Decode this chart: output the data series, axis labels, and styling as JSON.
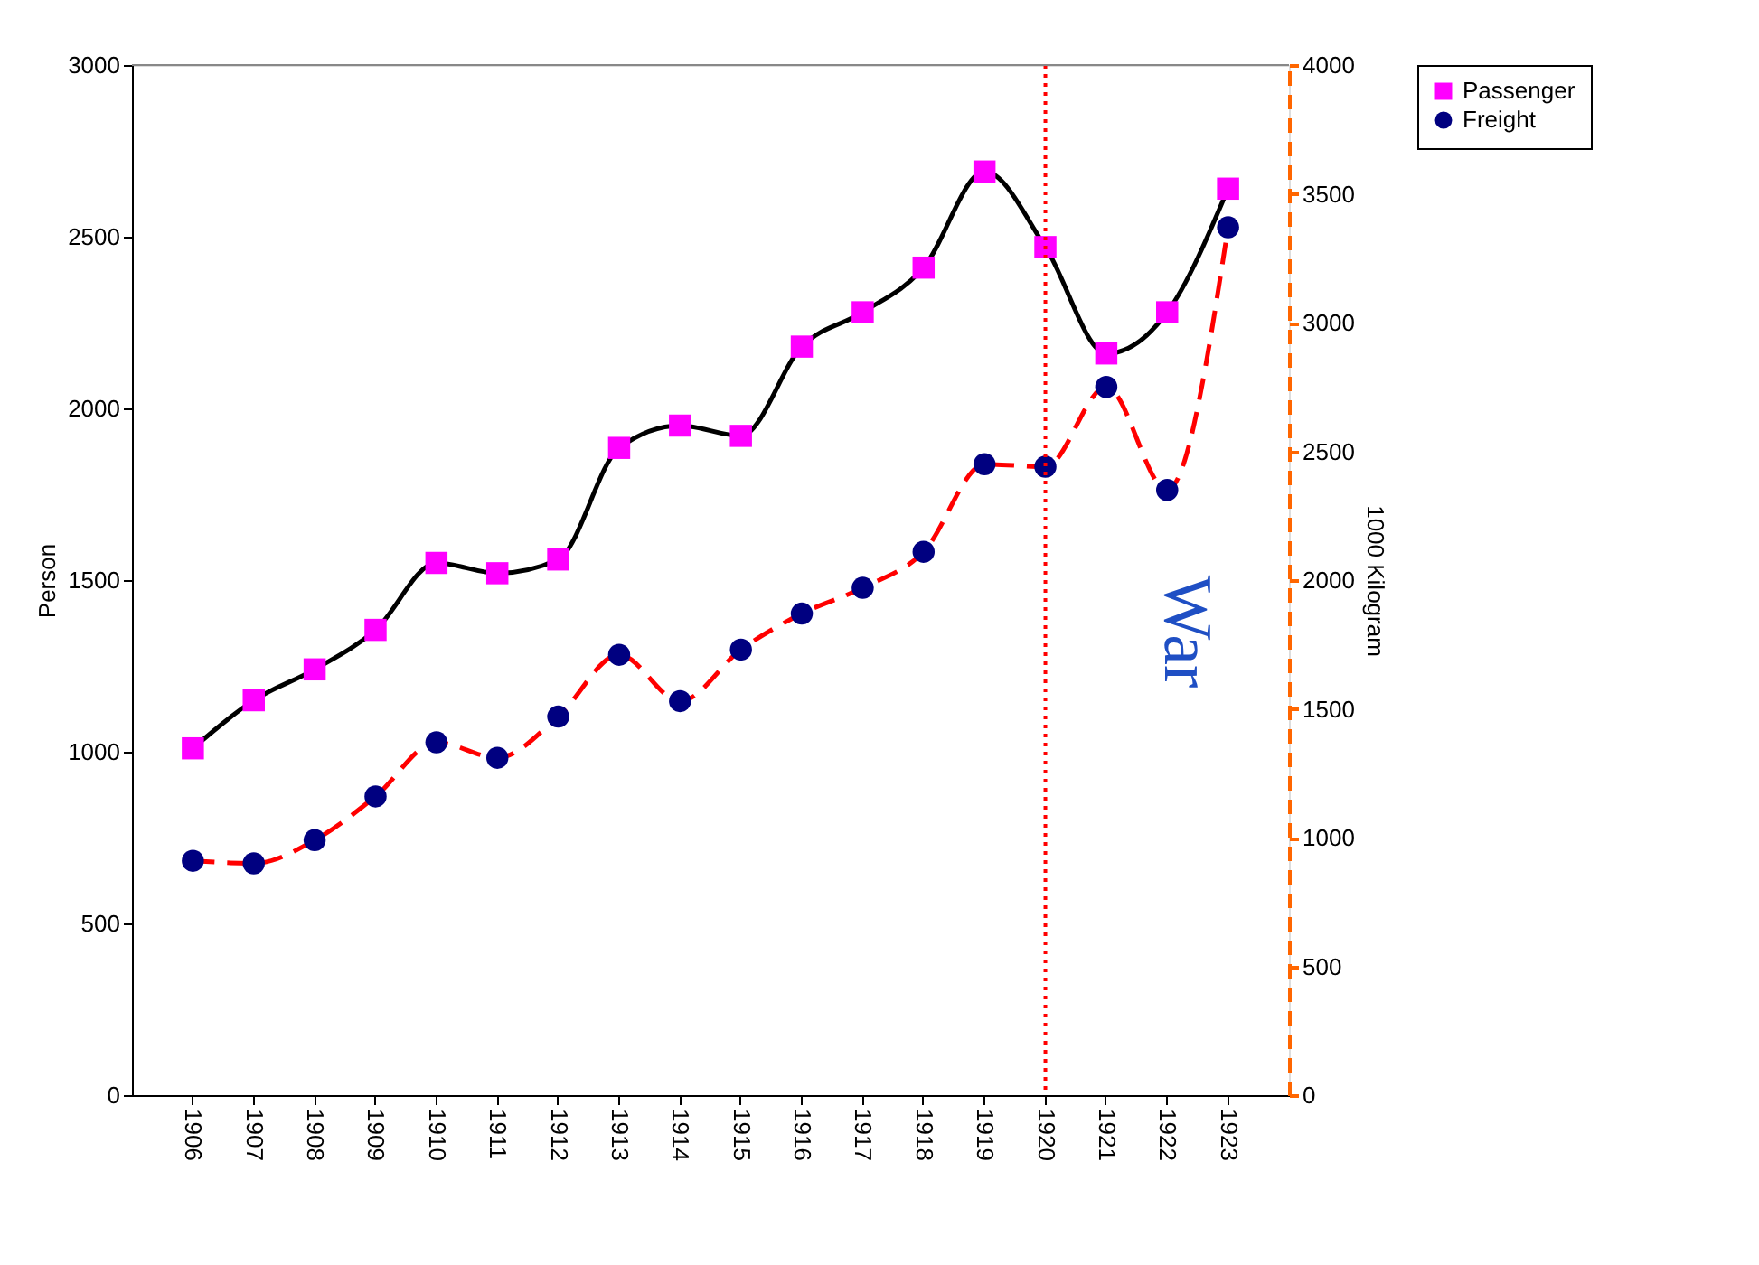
{
  "chart_data": {
    "type": "line",
    "categories": [
      "1906",
      "1907",
      "1908",
      "1909",
      "1910",
      "1911",
      "1912",
      "1913",
      "1914",
      "1915",
      "1916",
      "1917",
      "1918",
      "1919",
      "1920",
      "1921",
      "1922",
      "1923"
    ],
    "series": [
      {
        "name": "Passenger",
        "color": "#ff00ff",
        "marker": "square",
        "line_style": "solid",
        "values": [
          1010,
          1150,
          1240,
          1355,
          1550,
          1520,
          1560,
          1885,
          1950,
          1920,
          2180,
          2280,
          2410,
          2690,
          2470,
          2160,
          2280,
          2640
        ]
      },
      {
        "name": "Freight",
        "color": "#000080",
        "marker": "circle",
        "line_style": "dashed",
        "axis": "y2",
        "values": [
          910,
          900,
          990,
          1160,
          1370,
          1310,
          1470,
          1710,
          1530,
          1730,
          1870,
          1970,
          2110,
          2450,
          2440,
          2750,
          2350,
          3370
        ]
      }
    ],
    "ylabel": "Person",
    "y2label": "1000 Kilogram",
    "ylim": [
      0,
      3000
    ],
    "yticks": [
      0,
      500,
      1000,
      1500,
      2000,
      2500,
      3000
    ],
    "y2lim": [
      0,
      4000
    ],
    "y2ticks": [
      0,
      500,
      1000,
      1500,
      2000,
      2500,
      3000,
      3500,
      4000
    ],
    "ref_lines": [
      {
        "axis": "x",
        "value": "1920",
        "color": "#ff0000",
        "line_style": "dotted"
      }
    ],
    "annotations": [
      "War"
    ],
    "legend": "right",
    "grid": false
  }
}
